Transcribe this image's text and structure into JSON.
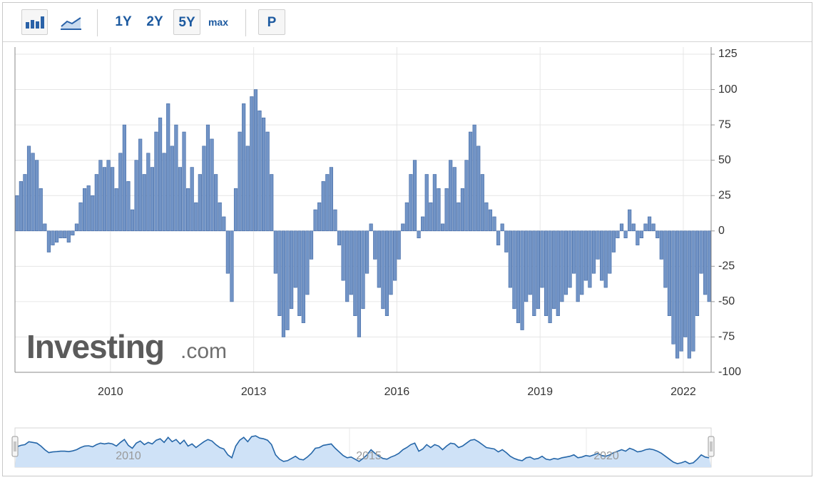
{
  "toolbar": {
    "buttons": [
      "1Y",
      "2Y",
      "5Y",
      "max",
      "P"
    ]
  },
  "watermark": {
    "brand": "Investing",
    "suffix": ".com"
  },
  "navigator": {
    "labels": [
      "2010",
      "2015",
      "2020"
    ]
  },
  "chart_data": {
    "type": "bar",
    "color": "#7294c6",
    "stroke": "#4068a4",
    "grid": true,
    "axis_side": "right",
    "ylim": [
      -100,
      125
    ],
    "yticks": [
      -100,
      -75,
      -50,
      -25,
      0,
      25,
      50,
      75,
      100,
      125
    ],
    "categories": [
      null,
      null,
      null,
      null,
      null,
      null,
      null,
      null,
      null,
      null,
      null,
      null,
      null,
      null,
      null,
      null,
      null,
      null,
      null,
      null,
      null,
      null,
      null,
      null,
      "2010",
      null,
      null,
      null,
      null,
      null,
      null,
      null,
      null,
      null,
      null,
      null,
      null,
      null,
      null,
      null,
      null,
      null,
      null,
      null,
      null,
      null,
      null,
      null,
      null,
      null,
      null,
      null,
      null,
      null,
      null,
      null,
      null,
      null,
      null,
      null,
      "2013",
      null,
      null,
      null,
      null,
      null,
      null,
      null,
      null,
      null,
      null,
      null,
      null,
      null,
      null,
      null,
      null,
      null,
      null,
      null,
      null,
      null,
      null,
      null,
      null,
      null,
      null,
      null,
      null,
      null,
      null,
      null,
      null,
      null,
      null,
      null,
      "2016",
      null,
      null,
      null,
      null,
      null,
      null,
      null,
      null,
      null,
      null,
      null,
      null,
      null,
      null,
      null,
      null,
      null,
      null,
      null,
      null,
      null,
      null,
      null,
      null,
      null,
      null,
      null,
      null,
      null,
      null,
      null,
      null,
      null,
      null,
      null,
      "2019",
      null,
      null,
      null,
      null,
      null,
      null,
      null,
      null,
      null,
      null,
      null,
      null,
      null,
      null,
      null,
      null,
      null,
      null,
      null,
      null,
      null,
      null,
      null,
      null,
      null,
      null,
      null,
      null,
      null,
      null,
      null,
      null,
      null,
      null,
      null,
      "2022",
      null,
      null,
      null,
      null,
      null,
      null
    ],
    "values": [
      25,
      35,
      40,
      60,
      55,
      50,
      30,
      5,
      -15,
      -10,
      -8,
      -5,
      -5,
      -8,
      -3,
      5,
      20,
      30,
      32,
      25,
      40,
      50,
      45,
      50,
      45,
      30,
      55,
      75,
      35,
      15,
      50,
      65,
      40,
      55,
      45,
      70,
      80,
      55,
      90,
      60,
      75,
      45,
      70,
      30,
      45,
      20,
      40,
      60,
      75,
      65,
      40,
      20,
      10,
      -30,
      -50,
      30,
      70,
      90,
      60,
      95,
      100,
      85,
      80,
      70,
      40,
      -30,
      -60,
      -75,
      -70,
      -55,
      -40,
      -60,
      -65,
      -45,
      -20,
      15,
      20,
      35,
      40,
      45,
      15,
      -10,
      -35,
      -50,
      -45,
      -60,
      -75,
      -55,
      -30,
      5,
      -20,
      -40,
      -55,
      -60,
      -45,
      -35,
      -20,
      5,
      20,
      40,
      50,
      -5,
      10,
      40,
      20,
      40,
      30,
      5,
      30,
      50,
      45,
      20,
      30,
      50,
      70,
      75,
      60,
      40,
      20,
      15,
      10,
      -10,
      5,
      -15,
      -40,
      -55,
      -65,
      -70,
      -50,
      -45,
      -60,
      -55,
      -40,
      -60,
      -65,
      -55,
      -60,
      -50,
      -45,
      -40,
      -30,
      -50,
      -45,
      -35,
      -40,
      -30,
      -20,
      -35,
      -40,
      -30,
      -15,
      -5,
      5,
      -5,
      15,
      5,
      -10,
      -5,
      5,
      10,
      5,
      -5,
      -20,
      -40,
      -60,
      -80,
      -90,
      -85,
      -75,
      -90,
      -85,
      -60,
      -30,
      -45,
      -50
    ]
  }
}
